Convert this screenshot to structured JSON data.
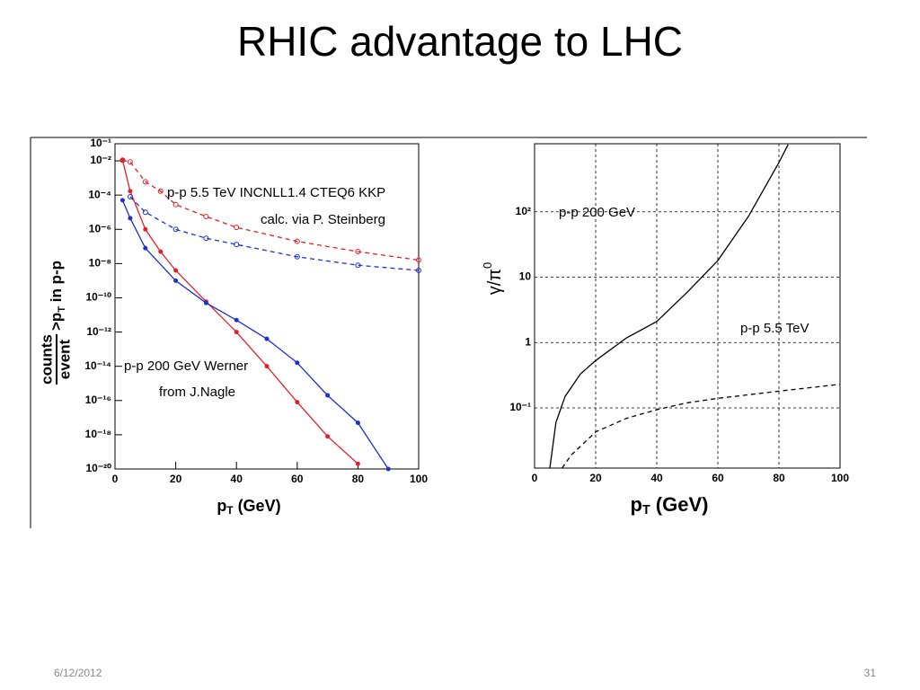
{
  "slide": {
    "title": "RHIC advantage to LHC",
    "date": "6/12/2012",
    "page": "31"
  },
  "chart_data": [
    {
      "type": "line",
      "log_y": true,
      "grid": false,
      "markers": true,
      "xlabel": [
        "p",
        "T",
        " (GeV)"
      ],
      "ylabel": {
        "numerator": "counts",
        "denominator": "event",
        "text": [
          "p",
          "T",
          " in p-p"
        ],
        "prefix": ">"
      },
      "annotations": [
        "p-p 5.5 TeV INCNLL1.4 CTEQ6 KKP",
        "calc. via P. Steinberg",
        "p-p 200 GeV Werner",
        "from J.Nagle"
      ],
      "xlim": [
        0,
        100
      ],
      "xticks": [
        0,
        20,
        40,
        60,
        80,
        100
      ],
      "ylim": [
        1e-20,
        0.1
      ],
      "yticks": [
        {
          "value": 0.1,
          "label": "10⁻¹"
        },
        {
          "value": 0.01,
          "label": "10⁻²"
        },
        {
          "value": 0.0001,
          "label": "10⁻⁴"
        },
        {
          "value": 1e-06,
          "label": "10⁻⁶"
        },
        {
          "value": 1e-08,
          "label": "10⁻⁸"
        },
        {
          "value": 1e-10,
          "label": "10⁻¹⁰"
        },
        {
          "value": 1e-12,
          "label": "10⁻¹²"
        },
        {
          "value": 1e-14,
          "label": "10⁻¹⁴"
        },
        {
          "value": 1e-16,
          "label": "10⁻¹⁶"
        },
        {
          "value": 1e-18,
          "label": "10⁻¹⁸"
        },
        {
          "value": 1e-20,
          "label": "10⁻²⁰"
        }
      ],
      "series": [
        {
          "color": "#e3202a",
          "dashed": false,
          "x": [
            2.5,
            5,
            10,
            15,
            20,
            30,
            40,
            50,
            60,
            70,
            80
          ],
          "values": [
            0.011,
            0.00017,
            1e-06,
            5e-08,
            4e-09,
            6e-11,
            1e-12,
            1e-14,
            8e-17,
            8e-19,
            2e-20
          ]
        },
        {
          "color": "#1f2fd0",
          "dashed": false,
          "x": [
            2.5,
            5,
            10,
            20,
            30,
            40,
            50,
            60,
            70,
            80,
            90
          ],
          "values": [
            5e-05,
            4.5e-06,
            8e-08,
            1e-09,
            5e-11,
            5e-12,
            4e-13,
            1.6e-14,
            2e-16,
            5e-18,
            1e-20
          ]
        },
        {
          "color": "#e3202a",
          "dashed": true,
          "x": [
            2.5,
            5,
            10,
            15,
            20,
            30,
            40,
            60,
            80,
            100
          ],
          "values": [
            0.011,
            0.0087,
            0.0006,
            0.00017,
            2.8e-05,
            5.6e-06,
            1.3e-06,
            2e-07,
            5e-08,
            1.6e-08
          ]
        },
        {
          "color": "#1f2fd0",
          "dashed": true,
          "x": [
            5,
            10,
            20,
            30,
            40,
            60,
            80,
            100
          ],
          "values": [
            8e-05,
            1e-05,
            1e-06,
            3e-07,
            1.3e-07,
            2.5e-08,
            8e-09,
            4e-09
          ]
        }
      ]
    },
    {
      "type": "line",
      "log_y": true,
      "grid": true,
      "markers": false,
      "xlabel": [
        "p",
        "T",
        " (GeV)"
      ],
      "ylabel": [
        "γ/π",
        "0"
      ],
      "annotations": [
        "p-p 200 GeV",
        "p-p 5.5 TeV"
      ],
      "xlim": [
        0,
        100
      ],
      "xticks": [
        0,
        20,
        40,
        60,
        80,
        100
      ],
      "ylim": [
        0.012,
        1100
      ],
      "yticks": [
        {
          "value": 0.1,
          "label": "10⁻¹"
        },
        1,
        10,
        {
          "value": 100,
          "label": "10²"
        }
      ],
      "series": [
        {
          "color": "#000000",
          "dashed": false,
          "x": [
            5,
            7,
            10,
            15,
            20,
            30,
            40,
            50,
            60,
            70,
            80,
            83
          ],
          "values": [
            0.012,
            0.06,
            0.15,
            0.33,
            0.53,
            1.17,
            2.1,
            5.9,
            18,
            85,
            570,
            1070
          ]
        },
        {
          "color": "#000000",
          "dashed": true,
          "x": [
            9,
            12,
            20,
            30,
            40,
            50,
            60,
            80,
            100
          ],
          "values": [
            0.012,
            0.019,
            0.043,
            0.069,
            0.094,
            0.12,
            0.14,
            0.18,
            0.23
          ]
        }
      ]
    }
  ]
}
